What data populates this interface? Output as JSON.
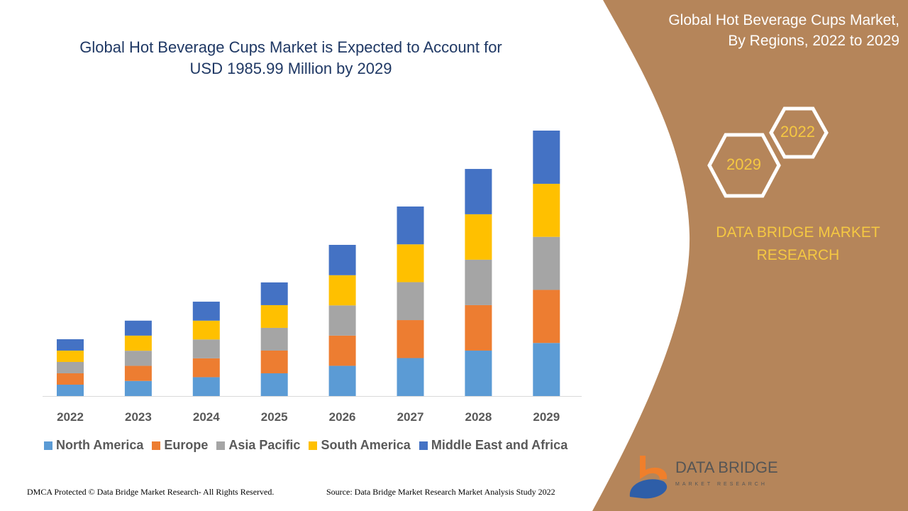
{
  "title": "Global Hot Beverage Cups Market is Expected to Account for USD 1985.99 Million by 2029",
  "title_line1": "Global Hot Beverage Cups Market is Expected to Account for",
  "title_line2": "USD 1985.99 Million by 2029",
  "side_panel": {
    "title_line1": "Global Hot Beverage Cups Market,",
    "title_line2": "By Regions, 2022 to 2029",
    "hex_start": "2022",
    "hex_end": "2029",
    "brand_line1": "DATA BRIDGE MARKET",
    "brand_line2": "RESEARCH",
    "logo_text": "DATA BRIDGE",
    "logo_subtext": "MARKET RESEARCH",
    "background_color": "#b5855a",
    "accent_color": "#f5c842"
  },
  "footer": {
    "left": "DMCA Protected © Data Bridge Market Research- All Rights Reserved.",
    "right": "Source: Data Bridge Market Research Market Analysis Study 2022"
  },
  "chart_data": {
    "type": "bar",
    "stacked": true,
    "title": "Global Hot Beverage Cups Market is Expected to Account for USD 1985.99 Million by 2029",
    "xlabel": "",
    "ylabel": "",
    "grid": false,
    "legend_position": "bottom",
    "categories": [
      "2022",
      "2023",
      "2024",
      "2025",
      "2026",
      "2027",
      "2028",
      "2029"
    ],
    "series": [
      {
        "name": "North America",
        "color": "#5b9bd5",
        "values": [
          85,
          113,
          141,
          170,
          226,
          284,
          340,
          397
        ]
      },
      {
        "name": "Europe",
        "color": "#ed7d31",
        "values": [
          85,
          113,
          141,
          170,
          226,
          284,
          340,
          397
        ]
      },
      {
        "name": "Asia Pacific",
        "color": "#a5a5a5",
        "values": [
          85,
          113,
          141,
          170,
          226,
          284,
          340,
          397
        ]
      },
      {
        "name": "South America",
        "color": "#ffc000",
        "values": [
          85,
          113,
          141,
          170,
          226,
          283,
          340,
          397
        ]
      },
      {
        "name": "Middle East and Africa",
        "color": "#4472c4",
        "values": [
          85,
          112,
          142,
          170,
          227,
          283,
          339,
          398
        ]
      }
    ]
  }
}
